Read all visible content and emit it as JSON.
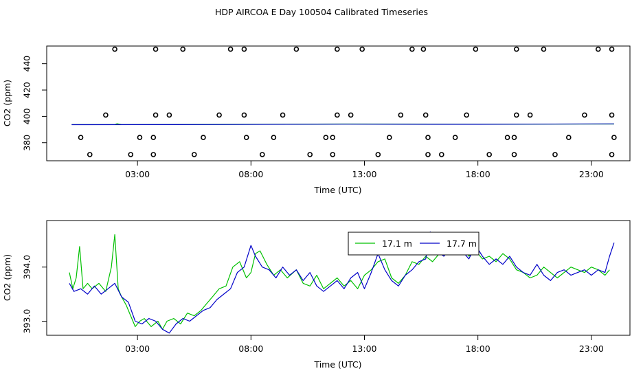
{
  "title": "HDP AIRCOA E  Day 100504  Calibrated Timeseries",
  "chart_data": [
    {
      "type": "scatter+line",
      "xlabel": "Time (UTC)",
      "ylabel": "CO2 (ppm)",
      "x_unit": "hours UTC",
      "xlim": [
        -1.0,
        24.7
      ],
      "ylim": [
        366.3,
        453.4
      ],
      "x_ticks": [
        3,
        8,
        13,
        18,
        23
      ],
      "x_tick_labels": [
        "03:00",
        "08:00",
        "13:00",
        "18:00",
        "23:00"
      ],
      "y_ticks": [
        380,
        400,
        420,
        440
      ],
      "y_tick_labels": [
        "380",
        "400",
        "420",
        "440"
      ],
      "grid": false,
      "calibration_points": {
        "x": [
          2.0,
          3.8,
          5.0,
          7.1,
          7.7,
          10.0,
          11.8,
          12.9,
          15.1,
          15.6,
          17.9,
          19.7,
          20.9,
          23.3,
          23.9,
          0.9,
          2.7,
          3.7,
          5.5,
          8.5,
          10.6,
          11.6,
          13.6,
          15.8,
          16.4,
          18.5,
          19.6,
          21.4,
          23.9,
          0.5,
          3.1,
          3.7,
          5.9,
          7.8,
          9.0,
          11.3,
          11.6,
          14.1,
          15.8,
          17.0,
          19.3,
          19.6,
          22.0,
          24.0,
          1.6,
          3.8,
          4.4,
          6.6,
          7.7,
          9.4,
          11.8,
          12.4,
          14.6,
          15.7,
          17.5,
          19.7,
          20.3,
          22.7,
          23.9
        ],
        "y": [
          451,
          451,
          451,
          451,
          451,
          451,
          451,
          451,
          451,
          451,
          451,
          451,
          451,
          451,
          451,
          371,
          371,
          371,
          371,
          371,
          371,
          371,
          371,
          371,
          371,
          371,
          371,
          371,
          371,
          384,
          384,
          384,
          384,
          384,
          384,
          384,
          384,
          384,
          384,
          384,
          384,
          384,
          384,
          384,
          401,
          401,
          401,
          401,
          401,
          401,
          401,
          401,
          401,
          401,
          401,
          401,
          401,
          401,
          401
        ]
      },
      "series": [
        {
          "color": "#00c000",
          "x": [
            0.1,
            2.0,
            2.1,
            2.3,
            6.0,
            12.0,
            18.0,
            24.0
          ],
          "y": [
            393.8,
            393.8,
            394.4,
            393.8,
            393.9,
            394.2,
            394.1,
            394.2
          ]
        },
        {
          "color": "#0000c8",
          "x": [
            0.1,
            6.0,
            12.0,
            18.0,
            24.0
          ],
          "y": [
            393.7,
            393.8,
            394.1,
            394.0,
            394.3
          ]
        }
      ]
    },
    {
      "type": "line",
      "xlabel": "Time (UTC)",
      "ylabel": "CO2 (ppm)",
      "x_unit": "hours UTC",
      "xlim": [
        -1.0,
        24.7
      ],
      "ylim": [
        392.74,
        394.86
      ],
      "x_ticks": [
        3,
        8,
        13,
        18,
        23
      ],
      "x_tick_labels": [
        "03:00",
        "08:00",
        "13:00",
        "18:00",
        "23:00"
      ],
      "y_ticks": [
        393.0,
        394.0
      ],
      "y_tick_labels": [
        "393.0",
        "394.0"
      ],
      "grid": false,
      "legend": {
        "position": "top-right"
      },
      "series": [
        {
          "name": "17.1 m",
          "color": "#00c000",
          "x": [
            0.0,
            0.15,
            0.3,
            0.45,
            0.6,
            0.8,
            1.0,
            1.3,
            1.6,
            1.85,
            2.0,
            2.15,
            2.3,
            2.5,
            2.7,
            2.9,
            3.1,
            3.3,
            3.6,
            3.9,
            4.1,
            4.3,
            4.6,
            4.9,
            5.2,
            5.5,
            5.8,
            6.0,
            6.3,
            6.6,
            6.9,
            7.2,
            7.5,
            7.8,
            8.0,
            8.2,
            8.4,
            8.7,
            9.0,
            9.3,
            9.6,
            10.0,
            10.3,
            10.6,
            10.9,
            11.2,
            11.5,
            11.8,
            12.1,
            12.4,
            12.7,
            13.0,
            13.3,
            13.6,
            13.9,
            14.2,
            14.5,
            14.8,
            15.1,
            15.4,
            15.7,
            16.0,
            16.3,
            16.6,
            16.9,
            17.1,
            17.3,
            17.6,
            17.9,
            18.2,
            18.5,
            18.8,
            19.1,
            19.4,
            19.7,
            20.0,
            20.3,
            20.6,
            20.9,
            21.2,
            21.5,
            21.8,
            22.1,
            22.4,
            22.7,
            23.0,
            23.3,
            23.6,
            23.8
          ],
          "y": [
            393.9,
            393.6,
            393.8,
            394.38,
            393.6,
            393.7,
            393.6,
            393.7,
            393.55,
            394.0,
            394.6,
            393.6,
            393.45,
            393.3,
            393.1,
            392.9,
            393.0,
            393.05,
            392.9,
            393.0,
            392.85,
            393.0,
            393.05,
            392.95,
            393.15,
            393.1,
            393.2,
            393.3,
            393.45,
            393.6,
            393.65,
            394.0,
            394.1,
            393.8,
            393.9,
            394.25,
            394.3,
            394.05,
            393.85,
            393.95,
            393.8,
            393.95,
            393.7,
            393.65,
            393.85,
            393.6,
            393.7,
            393.8,
            393.65,
            393.75,
            393.6,
            393.85,
            393.95,
            394.1,
            394.15,
            393.8,
            393.7,
            393.85,
            394.1,
            394.05,
            394.2,
            394.1,
            394.25,
            394.4,
            394.3,
            394.55,
            394.45,
            394.2,
            394.3,
            394.15,
            394.2,
            394.1,
            394.25,
            394.15,
            393.95,
            393.9,
            393.8,
            393.85,
            394.0,
            393.9,
            393.8,
            393.9,
            394.0,
            393.95,
            393.9,
            394.0,
            393.95,
            393.85,
            393.95
          ]
        },
        {
          "name": "17.7 m",
          "color": "#0000c8",
          "x": [
            0.0,
            0.2,
            0.5,
            0.8,
            1.1,
            1.4,
            1.7,
            2.0,
            2.3,
            2.6,
            2.9,
            3.2,
            3.5,
            3.8,
            4.1,
            4.4,
            4.7,
            5.0,
            5.3,
            5.6,
            5.9,
            6.2,
            6.5,
            6.8,
            7.1,
            7.4,
            7.7,
            8.0,
            8.2,
            8.5,
            8.8,
            9.1,
            9.4,
            9.7,
            10.0,
            10.3,
            10.6,
            10.9,
            11.2,
            11.5,
            11.8,
            12.1,
            12.4,
            12.7,
            13.0,
            13.3,
            13.6,
            13.9,
            14.2,
            14.5,
            14.8,
            15.1,
            15.4,
            15.7,
            15.9,
            16.2,
            16.5,
            16.8,
            17.1,
            17.3,
            17.6,
            17.9,
            18.2,
            18.5,
            18.8,
            19.1,
            19.4,
            19.7,
            20.0,
            20.3,
            20.6,
            20.9,
            21.2,
            21.5,
            21.8,
            22.1,
            22.4,
            22.7,
            23.0,
            23.3,
            23.6,
            23.8,
            24.0
          ],
          "y": [
            393.7,
            393.55,
            393.6,
            393.5,
            393.65,
            393.5,
            393.6,
            393.7,
            393.45,
            393.35,
            393.0,
            392.95,
            393.05,
            393.0,
            392.85,
            392.78,
            392.95,
            393.05,
            393.0,
            393.1,
            393.2,
            393.25,
            393.4,
            393.5,
            393.6,
            393.9,
            394.0,
            394.4,
            394.2,
            394.0,
            393.95,
            393.8,
            394.0,
            393.85,
            393.95,
            393.75,
            393.9,
            393.65,
            393.55,
            393.65,
            393.75,
            393.6,
            393.8,
            393.9,
            393.6,
            393.9,
            394.25,
            393.95,
            393.75,
            393.65,
            393.85,
            393.95,
            394.1,
            394.15,
            394.65,
            394.3,
            394.2,
            394.35,
            394.62,
            394.3,
            394.15,
            394.4,
            394.2,
            394.05,
            394.15,
            394.05,
            394.2,
            394.0,
            393.9,
            393.85,
            394.05,
            393.85,
            393.75,
            393.9,
            393.95,
            393.85,
            393.9,
            393.95,
            393.85,
            393.95,
            393.9,
            394.2,
            394.45
          ]
        }
      ]
    }
  ]
}
